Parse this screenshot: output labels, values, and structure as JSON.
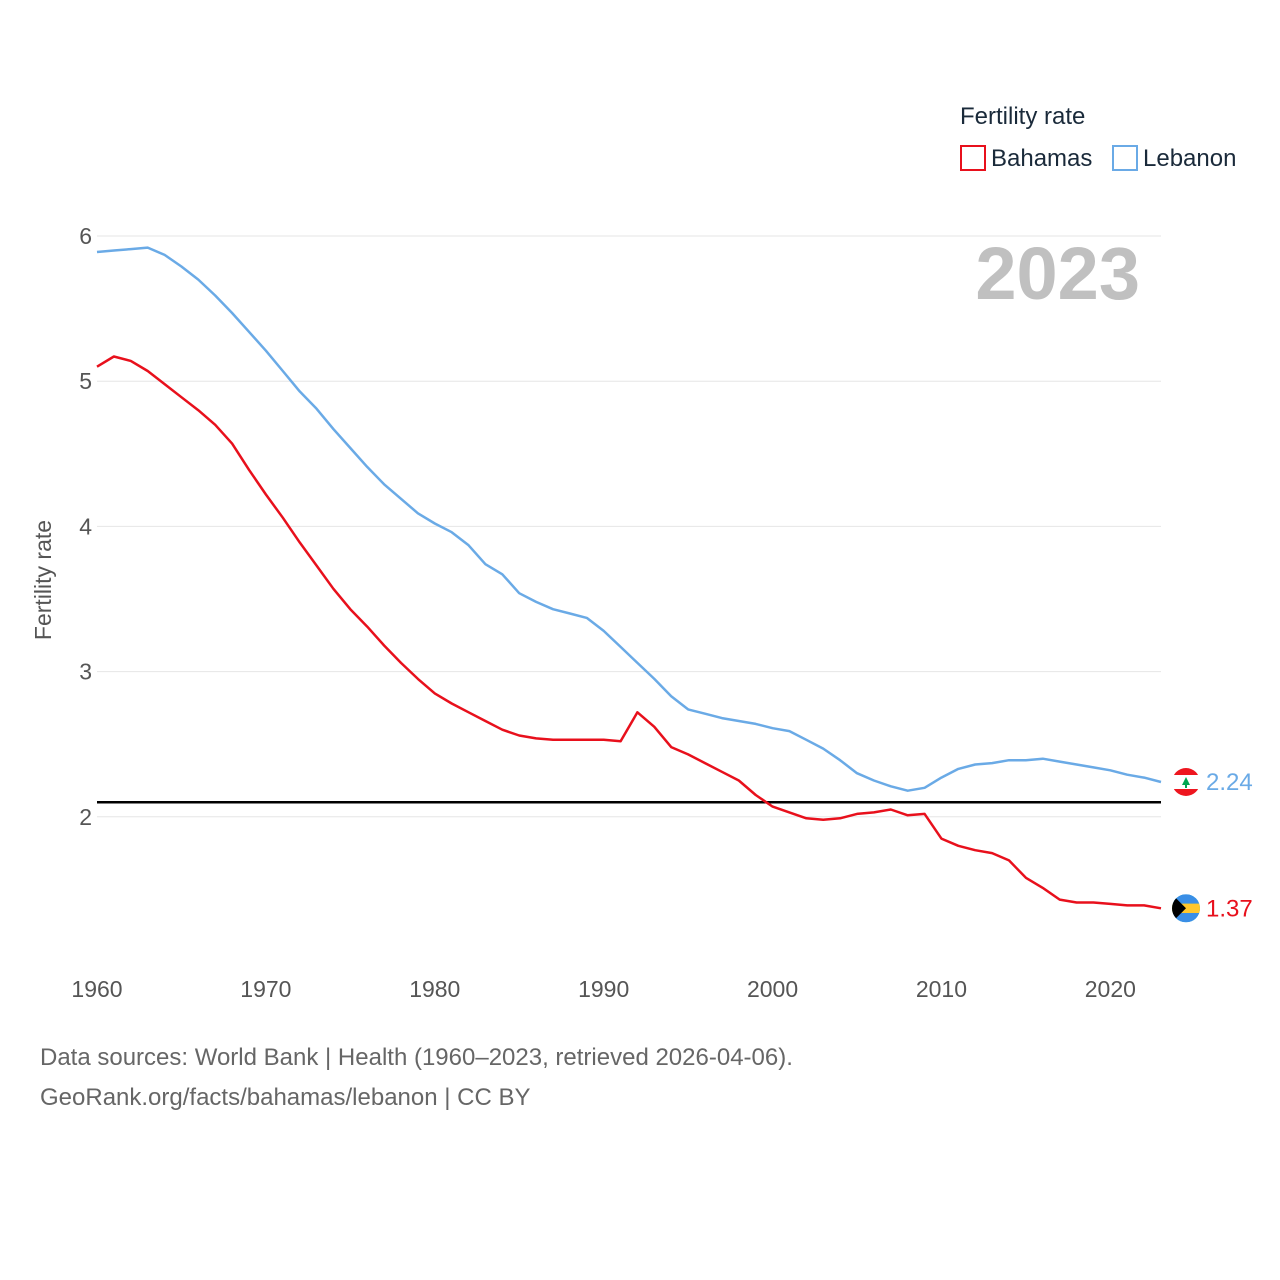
{
  "chart_data": {
    "type": "line",
    "legend_title": "Fertility rate",
    "ylabel": "Fertility rate",
    "xlabel": "",
    "current_year": "2023",
    "xlim": [
      1960,
      2023
    ],
    "ylim": [
      1.0,
      6.0
    ],
    "y_ticks": [
      2,
      3,
      4,
      5,
      6
    ],
    "x_ticks": [
      1960,
      1970,
      1980,
      1990,
      2000,
      2010,
      2020
    ],
    "reference_line": 2.1,
    "colors": {
      "reference": "#000000",
      "grid": "#e6e6e6"
    },
    "years": [
      1960,
      1961,
      1962,
      1963,
      1964,
      1965,
      1966,
      1967,
      1968,
      1969,
      1970,
      1971,
      1972,
      1973,
      1974,
      1975,
      1976,
      1977,
      1978,
      1979,
      1980,
      1981,
      1982,
      1983,
      1984,
      1985,
      1986,
      1987,
      1988,
      1989,
      1990,
      1991,
      1992,
      1993,
      1994,
      1995,
      1996,
      1997,
      1998,
      1999,
      2000,
      2001,
      2002,
      2003,
      2004,
      2005,
      2006,
      2007,
      2008,
      2009,
      2010,
      2011,
      2012,
      2013,
      2014,
      2015,
      2016,
      2017,
      2018,
      2019,
      2020,
      2021,
      2022,
      2023
    ],
    "series": [
      {
        "name": "Bahamas",
        "color": "#e8101c",
        "end_label": "1.37",
        "flag": "bahamas-flag",
        "values": [
          5.1,
          5.17,
          5.14,
          5.07,
          4.98,
          4.89,
          4.8,
          4.7,
          4.57,
          4.39,
          4.22,
          4.06,
          3.89,
          3.73,
          3.57,
          3.43,
          3.31,
          3.18,
          3.06,
          2.95,
          2.85,
          2.78,
          2.72,
          2.66,
          2.6,
          2.56,
          2.54,
          2.53,
          2.53,
          2.53,
          2.53,
          2.52,
          2.72,
          2.62,
          2.48,
          2.43,
          2.37,
          2.31,
          2.25,
          2.15,
          2.07,
          2.03,
          1.99,
          1.98,
          1.99,
          2.02,
          2.03,
          2.05,
          2.01,
          2.02,
          1.85,
          1.8,
          1.77,
          1.75,
          1.7,
          1.58,
          1.51,
          1.43,
          1.41,
          1.41,
          1.4,
          1.39,
          1.39,
          1.37
        ]
      },
      {
        "name": "Lebanon",
        "color": "#6aaae6",
        "end_label": "2.24",
        "flag": "lebanon-flag",
        "values": [
          5.89,
          5.9,
          5.91,
          5.92,
          5.87,
          5.79,
          5.7,
          5.59,
          5.47,
          5.34,
          5.21,
          5.07,
          4.93,
          4.81,
          4.67,
          4.54,
          4.41,
          4.29,
          4.19,
          4.09,
          4.02,
          3.96,
          3.87,
          3.74,
          3.67,
          3.54,
          3.48,
          3.43,
          3.4,
          3.37,
          3.28,
          3.17,
          3.06,
          2.95,
          2.83,
          2.74,
          2.71,
          2.68,
          2.66,
          2.64,
          2.61,
          2.59,
          2.53,
          2.47,
          2.39,
          2.3,
          2.25,
          2.21,
          2.18,
          2.2,
          2.27,
          2.33,
          2.36,
          2.37,
          2.39,
          2.39,
          2.4,
          2.38,
          2.36,
          2.34,
          2.32,
          2.29,
          2.27,
          2.24
        ]
      }
    ]
  },
  "footer": {
    "line1": "Data sources: World Bank | Health (1960–2023, retrieved 2026-04-06).",
    "line2": "GeoRank.org/facts/bahamas/lebanon | CC BY"
  }
}
